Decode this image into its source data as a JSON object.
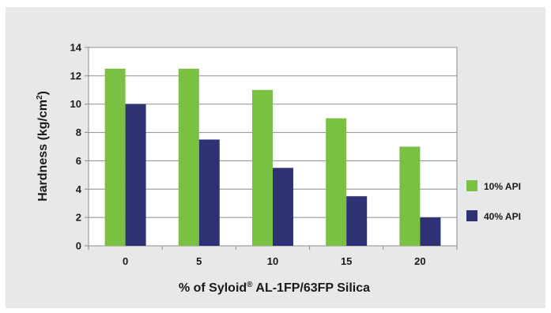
{
  "chart_data": {
    "type": "bar",
    "categories": [
      "0",
      "5",
      "10",
      "15",
      "20"
    ],
    "series": [
      {
        "name": "10% API",
        "values": [
          12.5,
          12.5,
          11,
          9,
          7
        ],
        "color": "#7ac143"
      },
      {
        "name": "40% API",
        "values": [
          10,
          7.5,
          5.5,
          3.5,
          2
        ],
        "color": "#2e3173"
      }
    ],
    "ylabel_main": "Hardness (kg/cm",
    "ylabel_sup": "2",
    "ylabel_end": ")",
    "xlabel_main": "% of Syloid",
    "xlabel_sup": "®",
    "xlabel_end": " AL-1FP/63FP Silica",
    "ylim": [
      0,
      14
    ],
    "yticks": [
      "0",
      "2",
      "4",
      "6",
      "8",
      "10",
      "12",
      "14"
    ],
    "grid": true,
    "legend_position": "right"
  }
}
